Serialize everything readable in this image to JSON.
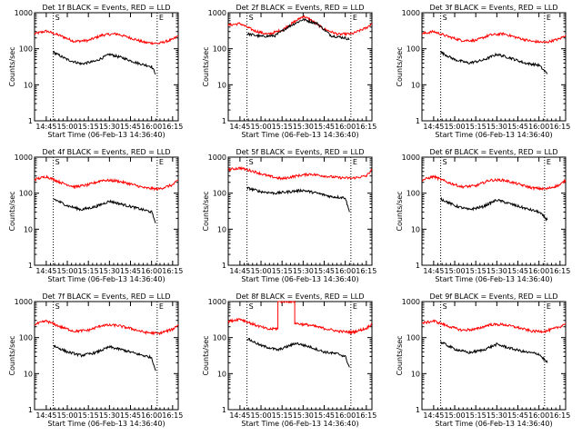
{
  "chart_data": [
    {
      "type": "line",
      "title": "Det 1f BLACK = Events, RED = LLD",
      "xlabel": "Start Time (06-Feb-13 14:36:40)",
      "ylabel": "Counts/sec",
      "yscale": "log",
      "ylim": [
        1,
        1000
      ],
      "xlim": [
        "14:36:40",
        "16:19:00"
      ],
      "x_ticks": [
        "14:45",
        "15:00",
        "15:15",
        "15:30",
        "15:45",
        "16:00",
        "16:15"
      ],
      "y_ticks": [
        "1",
        "10",
        "100",
        "1000"
      ],
      "markers": [
        "14:50",
        "16:04"
      ],
      "marker_labels": [
        "S",
        "E"
      ],
      "colors": {
        "red": "#ff0000",
        "black": "#000000"
      },
      "series": [
        {
          "color": "red",
          "x": [
            "14:36:40",
            "14:45",
            "14:55",
            "15:05",
            "15:15",
            "15:25",
            "15:35",
            "15:45",
            "15:55",
            "16:05",
            "16:15",
            "16:19"
          ],
          "values": [
            260,
            310,
            230,
            160,
            170,
            240,
            260,
            200,
            150,
            140,
            180,
            230
          ]
        },
        {
          "color": "black",
          "x": [
            "14:50",
            "15:00",
            "15:10",
            "15:20",
            "15:30",
            "15:40",
            "15:50",
            "16:00",
            "16:03"
          ],
          "values": [
            80,
            50,
            38,
            45,
            70,
            55,
            40,
            32,
            20
          ]
        }
      ]
    },
    {
      "type": "line",
      "title": "Det 2f BLACK = Events, RED = LLD",
      "xlabel": "Start Time (06-Feb-13 14:36:40)",
      "ylabel": "Counts/sec",
      "yscale": "log",
      "ylim": [
        1,
        1000
      ],
      "xlim": [
        "14:36:40",
        "16:19:00"
      ],
      "x_ticks": [
        "14:45",
        "15:00",
        "15:15",
        "15:30",
        "15:45",
        "16:00",
        "16:15"
      ],
      "y_ticks": [
        "1",
        "10",
        "100",
        "1000"
      ],
      "markers": [
        "14:50",
        "16:04"
      ],
      "marker_labels": [
        "S",
        "E"
      ],
      "colors": {
        "red": "#ff0000",
        "black": "#000000"
      },
      "series": [
        {
          "color": "red",
          "x": [
            "14:36:40",
            "14:45",
            "14:55",
            "15:05",
            "15:15",
            "15:25",
            "15:30",
            "15:35",
            "15:45",
            "15:55",
            "16:05",
            "16:15",
            "16:19"
          ],
          "values": [
            450,
            500,
            320,
            250,
            330,
            600,
            800,
            650,
            350,
            250,
            260,
            380,
            500
          ]
        },
        {
          "color": "black",
          "x": [
            "14:50",
            "15:00",
            "15:10",
            "15:20",
            "15:30",
            "15:40",
            "15:50",
            "16:00",
            "16:03"
          ],
          "values": [
            260,
            220,
            230,
            420,
            650,
            500,
            230,
            200,
            180
          ]
        }
      ]
    },
    {
      "type": "line",
      "title": "Det 3f BLACK = Events, RED = LLD",
      "xlabel": "Start Time (06-Feb-13 14:36:40)",
      "ylabel": "Counts/sec",
      "yscale": "log",
      "ylim": [
        1,
        1000
      ],
      "xlim": [
        "14:36:40",
        "16:19:00"
      ],
      "x_ticks": [
        "14:45",
        "15:00",
        "15:15",
        "15:30",
        "15:45",
        "16:00",
        "16:15"
      ],
      "y_ticks": [
        "1",
        "10",
        "100",
        "1000"
      ],
      "markers": [
        "14:50",
        "16:04"
      ],
      "marker_labels": [
        "S",
        "E"
      ],
      "colors": {
        "red": "#ff0000",
        "black": "#000000"
      },
      "series": [
        {
          "color": "red",
          "x": [
            "14:36:40",
            "14:45",
            "14:55",
            "15:05",
            "15:15",
            "15:25",
            "15:35",
            "15:45",
            "15:55",
            "16:05",
            "16:15",
            "16:19"
          ],
          "values": [
            260,
            300,
            220,
            170,
            170,
            240,
            260,
            200,
            160,
            150,
            190,
            240
          ]
        },
        {
          "color": "black",
          "x": [
            "14:50",
            "15:00",
            "15:10",
            "15:20",
            "15:30",
            "15:40",
            "15:50",
            "16:00",
            "16:06"
          ],
          "values": [
            80,
            50,
            40,
            48,
            70,
            55,
            40,
            35,
            20
          ]
        }
      ]
    },
    {
      "type": "line",
      "title": "Det 4f BLACK = Events, RED = LLD",
      "xlabel": "Start Time (06-Feb-13 14:36:40)",
      "ylabel": "Counts/sec",
      "yscale": "log",
      "ylim": [
        1,
        1000
      ],
      "xlim": [
        "14:36:40",
        "16:19:00"
      ],
      "x_ticks": [
        "14:45",
        "15:00",
        "15:15",
        "15:30",
        "15:45",
        "16:00",
        "16:15"
      ],
      "y_ticks": [
        "1",
        "10",
        "100",
        "1000"
      ],
      "markers": [
        "14:50",
        "16:04"
      ],
      "marker_labels": [
        "S",
        "E"
      ],
      "colors": {
        "red": "#ff0000",
        "black": "#000000"
      },
      "series": [
        {
          "color": "red",
          "x": [
            "14:36:40",
            "14:45",
            "14:55",
            "15:05",
            "15:15",
            "15:25",
            "15:35",
            "15:45",
            "15:55",
            "16:05",
            "16:15",
            "16:19"
          ],
          "values": [
            240,
            290,
            200,
            150,
            170,
            230,
            220,
            180,
            140,
            130,
            170,
            230
          ]
        },
        {
          "color": "black",
          "x": [
            "14:50",
            "15:00",
            "15:10",
            "15:20",
            "15:30",
            "15:40",
            "15:50",
            "16:00",
            "16:03"
          ],
          "values": [
            70,
            45,
            35,
            42,
            60,
            48,
            38,
            30,
            15
          ]
        }
      ]
    },
    {
      "type": "line",
      "title": "Det 5f BLACK = Events, RED = LLD",
      "xlabel": "Start Time (06-Feb-13 14:36:40)",
      "ylabel": "Counts/sec",
      "yscale": "log",
      "ylim": [
        1,
        1000
      ],
      "xlim": [
        "14:36:40",
        "16:19:00"
      ],
      "x_ticks": [
        "14:45",
        "15:00",
        "15:15",
        "15:30",
        "15:45",
        "16:00",
        "16:15"
      ],
      "y_ticks": [
        "1",
        "10",
        "100",
        "1000"
      ],
      "markers": [
        "14:50",
        "16:04"
      ],
      "marker_labels": [
        "S",
        "E"
      ],
      "colors": {
        "red": "#ff0000",
        "black": "#000000"
      },
      "series": [
        {
          "color": "red",
          "x": [
            "14:36:40",
            "14:45",
            "14:55",
            "15:05",
            "15:15",
            "15:25",
            "15:35",
            "15:45",
            "15:55",
            "16:05",
            "16:15",
            "16:19"
          ],
          "values": [
            450,
            500,
            400,
            300,
            250,
            300,
            340,
            300,
            270,
            260,
            300,
            450
          ]
        },
        {
          "color": "black",
          "x": [
            "14:50",
            "15:00",
            "15:10",
            "15:20",
            "15:30",
            "15:40",
            "15:50",
            "16:00",
            "16:03"
          ],
          "values": [
            140,
            110,
            100,
            110,
            120,
            100,
            80,
            75,
            30
          ]
        }
      ]
    },
    {
      "type": "line",
      "title": "Det 6f BLACK = Events, RED = LLD",
      "xlabel": "Start Time (06-Feb-13 14:36:40)",
      "ylabel": "Counts/sec",
      "yscale": "log",
      "ylim": [
        1,
        1000
      ],
      "xlim": [
        "14:36:40",
        "16:19:00"
      ],
      "x_ticks": [
        "14:45",
        "15:00",
        "15:15",
        "15:30",
        "15:45",
        "16:00",
        "16:15"
      ],
      "y_ticks": [
        "1",
        "10",
        "100",
        "1000"
      ],
      "markers": [
        "14:50",
        "16:04"
      ],
      "marker_labels": [
        "S",
        "E"
      ],
      "colors": {
        "red": "#ff0000",
        "black": "#000000"
      },
      "series": [
        {
          "color": "red",
          "x": [
            "14:36:40",
            "14:45",
            "14:55",
            "15:05",
            "15:15",
            "15:25",
            "15:35",
            "15:45",
            "15:55",
            "16:05",
            "16:15",
            "16:19"
          ],
          "values": [
            230,
            290,
            200,
            150,
            160,
            230,
            230,
            180,
            140,
            130,
            170,
            230
          ]
        },
        {
          "color": "black",
          "x": [
            "14:50",
            "15:00",
            "15:10",
            "15:20",
            "15:30",
            "15:40",
            "15:50",
            "16:00",
            "16:06"
          ],
          "values": [
            70,
            45,
            35,
            42,
            65,
            50,
            38,
            30,
            18
          ]
        }
      ]
    },
    {
      "type": "line",
      "title": "Det 7f BLACK = Events, RED = LLD",
      "xlabel": "Start Time (06-Feb-13 14:36:40)",
      "ylabel": "Counts/sec",
      "yscale": "log",
      "ylim": [
        1,
        1000
      ],
      "xlim": [
        "14:36:40",
        "16:19:00"
      ],
      "x_ticks": [
        "14:45",
        "15:00",
        "15:15",
        "15:30",
        "15:45",
        "16:00",
        "16:15"
      ],
      "y_ticks": [
        "1",
        "10",
        "100",
        "1000"
      ],
      "markers": [
        "14:50",
        "16:04"
      ],
      "marker_labels": [
        "S",
        "E"
      ],
      "colors": {
        "red": "#ff0000",
        "black": "#000000"
      },
      "series": [
        {
          "color": "red",
          "x": [
            "14:36:40",
            "14:45",
            "14:55",
            "15:05",
            "15:15",
            "15:25",
            "15:35",
            "15:45",
            "15:55",
            "16:05",
            "16:15",
            "16:19"
          ],
          "values": [
            230,
            290,
            200,
            150,
            160,
            220,
            220,
            180,
            140,
            130,
            170,
            230
          ]
        },
        {
          "color": "black",
          "x": [
            "14:50",
            "15:00",
            "15:10",
            "15:20",
            "15:30",
            "15:40",
            "15:50",
            "16:00",
            "16:03"
          ],
          "values": [
            60,
            40,
            32,
            38,
            55,
            45,
            35,
            28,
            12
          ]
        }
      ]
    },
    {
      "type": "line",
      "title": "Det 8f BLACK = Events, RED = LLD",
      "xlabel": "Start Time (06-Feb-13 14:36:40)",
      "ylabel": "Counts/sec",
      "yscale": "log",
      "ylim": [
        1,
        1000
      ],
      "xlim": [
        "14:36:40",
        "16:19:00"
      ],
      "x_ticks": [
        "14:45",
        "15:00",
        "15:15",
        "15:30",
        "15:45",
        "16:00",
        "16:15"
      ],
      "y_ticks": [
        "1",
        "10",
        "100",
        "1000"
      ],
      "markers": [
        "14:50",
        "16:04"
      ],
      "marker_labels": [
        "S",
        "E"
      ],
      "colors": {
        "red": "#ff0000",
        "black": "#000000"
      },
      "series": [
        {
          "color": "red",
          "x": [
            "14:36:40",
            "14:45",
            "14:55",
            "15:05",
            "15:12",
            "15:12",
            "15:24",
            "15:24",
            "15:35",
            "15:45",
            "15:55",
            "16:05",
            "16:15",
            "16:19"
          ],
          "values": [
            280,
            330,
            230,
            170,
            180,
            1000,
            1000,
            250,
            220,
            180,
            150,
            140,
            180,
            240
          ]
        },
        {
          "color": "black",
          "x": [
            "14:50",
            "15:00",
            "15:08",
            "15:12",
            "15:25",
            "15:35",
            "15:45",
            "15:55",
            "16:00",
            "16:03"
          ],
          "values": [
            95,
            60,
            50,
            45,
            70,
            55,
            40,
            35,
            30,
            15
          ]
        }
      ]
    },
    {
      "type": "line",
      "title": "Det 9f BLACK = Events, RED = LLD",
      "xlabel": "Start Time (06-Feb-13 14:36:40)",
      "ylabel": "Counts/sec",
      "yscale": "log",
      "ylim": [
        1,
        1000
      ],
      "xlim": [
        "14:36:40",
        "16:19:00"
      ],
      "x_ticks": [
        "14:45",
        "15:00",
        "15:15",
        "15:30",
        "15:45",
        "16:00",
        "16:15"
      ],
      "y_ticks": [
        "1",
        "10",
        "100",
        "1000"
      ],
      "markers": [
        "14:50",
        "16:04"
      ],
      "marker_labels": [
        "S",
        "E"
      ],
      "colors": {
        "red": "#ff0000",
        "black": "#000000"
      },
      "series": [
        {
          "color": "red",
          "x": [
            "14:36:40",
            "14:45",
            "14:55",
            "15:05",
            "15:15",
            "15:25",
            "15:35",
            "15:45",
            "15:55",
            "16:05",
            "16:15",
            "16:19"
          ],
          "values": [
            250,
            290,
            210,
            160,
            170,
            230,
            230,
            190,
            150,
            150,
            200,
            250
          ]
        },
        {
          "color": "black",
          "x": [
            "14:50",
            "15:00",
            "15:10",
            "15:20",
            "15:30",
            "15:40",
            "15:50",
            "16:00",
            "16:06"
          ],
          "values": [
            75,
            48,
            38,
            45,
            65,
            50,
            40,
            35,
            20
          ]
        }
      ]
    }
  ]
}
